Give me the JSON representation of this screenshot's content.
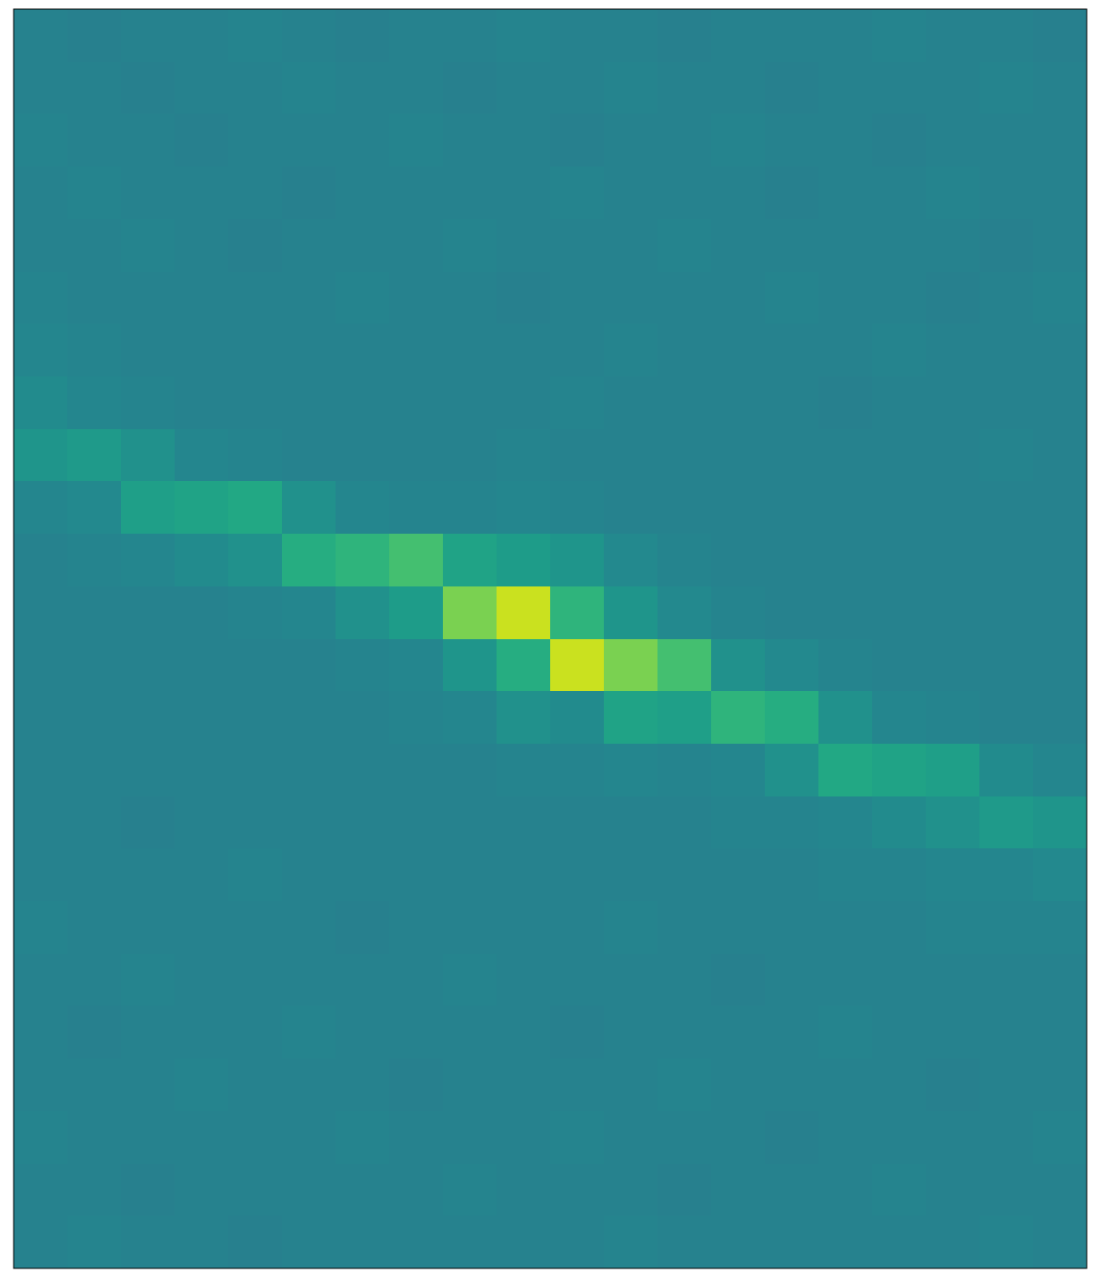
{
  "chart_data": {
    "type": "heatmap",
    "tick_labels": false,
    "values": [
      [
        0.44,
        0.43,
        0.44,
        0.44,
        0.45,
        0.44,
        0.43,
        0.44,
        0.44,
        0.45,
        0.44,
        0.44,
        0.43,
        0.44,
        0.44,
        0.44,
        0.45,
        0.44,
        0.44,
        0.43
      ],
      [
        0.44,
        0.44,
        0.43,
        0.44,
        0.44,
        0.45,
        0.44,
        0.44,
        0.43,
        0.44,
        0.44,
        0.45,
        0.44,
        0.44,
        0.43,
        0.44,
        0.44,
        0.44,
        0.45,
        0.44
      ],
      [
        0.45,
        0.44,
        0.44,
        0.43,
        0.44,
        0.44,
        0.44,
        0.45,
        0.44,
        0.44,
        0.43,
        0.44,
        0.44,
        0.45,
        0.44,
        0.44,
        0.43,
        0.44,
        0.44,
        0.44
      ],
      [
        0.44,
        0.45,
        0.44,
        0.44,
        0.44,
        0.43,
        0.44,
        0.44,
        0.44,
        0.44,
        0.45,
        0.44,
        0.44,
        0.44,
        0.43,
        0.44,
        0.44,
        0.45,
        0.44,
        0.44
      ],
      [
        0.44,
        0.44,
        0.45,
        0.44,
        0.43,
        0.44,
        0.44,
        0.44,
        0.45,
        0.44,
        0.44,
        0.44,
        0.45,
        0.44,
        0.44,
        0.44,
        0.44,
        0.44,
        0.43,
        0.44
      ],
      [
        0.45,
        0.44,
        0.44,
        0.44,
        0.44,
        0.44,
        0.45,
        0.44,
        0.44,
        0.43,
        0.44,
        0.44,
        0.44,
        0.44,
        0.45,
        0.44,
        0.44,
        0.43,
        0.44,
        0.45
      ],
      [
        0.46,
        0.45,
        0.44,
        0.44,
        0.44,
        0.44,
        0.44,
        0.44,
        0.44,
        0.44,
        0.44,
        0.45,
        0.44,
        0.44,
        0.44,
        0.44,
        0.45,
        0.44,
        0.44,
        0.44
      ],
      [
        0.48,
        0.46,
        0.45,
        0.44,
        0.44,
        0.44,
        0.44,
        0.44,
        0.44,
        0.44,
        0.45,
        0.44,
        0.44,
        0.44,
        0.44,
        0.43,
        0.44,
        0.44,
        0.44,
        0.44
      ],
      [
        0.52,
        0.54,
        0.5,
        0.46,
        0.45,
        0.44,
        0.44,
        0.44,
        0.44,
        0.45,
        0.44,
        0.44,
        0.44,
        0.44,
        0.44,
        0.44,
        0.44,
        0.44,
        0.45,
        0.44
      ],
      [
        0.46,
        0.47,
        0.56,
        0.58,
        0.6,
        0.5,
        0.46,
        0.45,
        0.45,
        0.46,
        0.45,
        0.44,
        0.44,
        0.44,
        0.44,
        0.44,
        0.44,
        0.44,
        0.44,
        0.44
      ],
      [
        0.44,
        0.45,
        0.46,
        0.48,
        0.5,
        0.62,
        0.65,
        0.7,
        0.58,
        0.55,
        0.52,
        0.47,
        0.45,
        0.44,
        0.44,
        0.44,
        0.44,
        0.44,
        0.44,
        0.44
      ],
      [
        0.44,
        0.44,
        0.44,
        0.44,
        0.45,
        0.46,
        0.5,
        0.55,
        0.8,
        0.92,
        0.65,
        0.52,
        0.47,
        0.45,
        0.44,
        0.44,
        0.44,
        0.44,
        0.44,
        0.44
      ],
      [
        0.44,
        0.44,
        0.44,
        0.44,
        0.44,
        0.44,
        0.45,
        0.46,
        0.52,
        0.62,
        0.92,
        0.8,
        0.7,
        0.5,
        0.47,
        0.45,
        0.44,
        0.44,
        0.44,
        0.44
      ],
      [
        0.44,
        0.44,
        0.44,
        0.44,
        0.44,
        0.44,
        0.44,
        0.45,
        0.46,
        0.5,
        0.48,
        0.58,
        0.56,
        0.65,
        0.62,
        0.5,
        0.46,
        0.45,
        0.44,
        0.44
      ],
      [
        0.44,
        0.44,
        0.44,
        0.44,
        0.44,
        0.44,
        0.44,
        0.44,
        0.44,
        0.45,
        0.45,
        0.46,
        0.45,
        0.46,
        0.5,
        0.6,
        0.58,
        0.56,
        0.48,
        0.46
      ],
      [
        0.44,
        0.44,
        0.43,
        0.44,
        0.44,
        0.44,
        0.44,
        0.44,
        0.44,
        0.44,
        0.44,
        0.44,
        0.44,
        0.45,
        0.45,
        0.46,
        0.48,
        0.5,
        0.54,
        0.52
      ],
      [
        0.44,
        0.44,
        0.44,
        0.44,
        0.45,
        0.44,
        0.44,
        0.44,
        0.44,
        0.44,
        0.44,
        0.44,
        0.44,
        0.44,
        0.44,
        0.45,
        0.45,
        0.46,
        0.46,
        0.47
      ],
      [
        0.45,
        0.44,
        0.44,
        0.44,
        0.44,
        0.44,
        0.43,
        0.44,
        0.44,
        0.44,
        0.44,
        0.45,
        0.44,
        0.44,
        0.44,
        0.44,
        0.44,
        0.45,
        0.45,
        0.45
      ],
      [
        0.44,
        0.44,
        0.45,
        0.44,
        0.44,
        0.44,
        0.44,
        0.44,
        0.45,
        0.44,
        0.44,
        0.44,
        0.44,
        0.43,
        0.44,
        0.44,
        0.44,
        0.44,
        0.44,
        0.44
      ],
      [
        0.44,
        0.43,
        0.44,
        0.44,
        0.44,
        0.45,
        0.44,
        0.44,
        0.44,
        0.44,
        0.43,
        0.44,
        0.44,
        0.44,
        0.44,
        0.45,
        0.44,
        0.44,
        0.44,
        0.44
      ],
      [
        0.44,
        0.44,
        0.44,
        0.45,
        0.44,
        0.44,
        0.44,
        0.43,
        0.44,
        0.44,
        0.44,
        0.44,
        0.45,
        0.44,
        0.44,
        0.44,
        0.44,
        0.43,
        0.44,
        0.44
      ],
      [
        0.45,
        0.44,
        0.44,
        0.44,
        0.44,
        0.44,
        0.45,
        0.44,
        0.44,
        0.44,
        0.45,
        0.44,
        0.44,
        0.44,
        0.43,
        0.44,
        0.44,
        0.44,
        0.44,
        0.45
      ],
      [
        0.44,
        0.44,
        0.43,
        0.44,
        0.44,
        0.44,
        0.44,
        0.44,
        0.45,
        0.44,
        0.44,
        0.44,
        0.43,
        0.44,
        0.44,
        0.44,
        0.45,
        0.44,
        0.44,
        0.44
      ],
      [
        0.44,
        0.45,
        0.44,
        0.44,
        0.43,
        0.44,
        0.44,
        0.44,
        0.44,
        0.44,
        0.44,
        0.45,
        0.44,
        0.44,
        0.44,
        0.44,
        0.44,
        0.44,
        0.45,
        0.44
      ]
    ]
  }
}
